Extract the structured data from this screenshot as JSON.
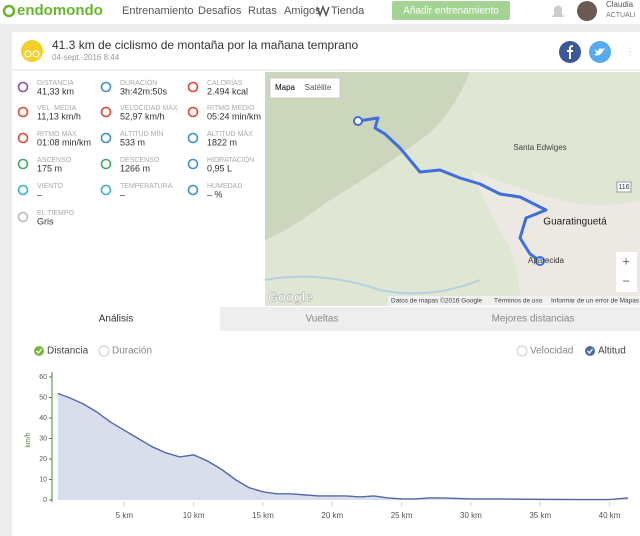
{
  "nav": {
    "logo": "endomondo",
    "items": [
      "Entrenamiento",
      "Desafíos",
      "Rutas",
      "Amigos",
      "Tienda"
    ],
    "button": "Añadir entrenamiento",
    "user": "Claudia",
    "user_status": "ACTUALI"
  },
  "workout": {
    "title": "41.3 km de ciclismo de montaña por la mañana temprano",
    "date": "04-sept.-2016 8:44"
  },
  "stats": [
    {
      "label": "DISTANCIA",
      "value": "41,33 km"
    },
    {
      "label": "DURACIÓN",
      "value": "3h:42m:50s"
    },
    {
      "label": "CALORÍAS",
      "value": "2.494 kcal"
    },
    {
      "label": "VEL. MEDIA",
      "value": "11,13 km/h"
    },
    {
      "label": "VELOCIDAD MÁX",
      "value": "52,97 km/h"
    },
    {
      "label": "RITMO MEDIO",
      "value": "05:24 min/km"
    },
    {
      "label": "RITMO MÁX",
      "value": "01:08 min/km"
    },
    {
      "label": "ALTITUD MÍN",
      "value": "533 m"
    },
    {
      "label": "ALTITUD MÁX",
      "value": "1822 m"
    },
    {
      "label": "ASCENSO",
      "value": "175 m"
    },
    {
      "label": "DESCENSO",
      "value": "1266 m"
    },
    {
      "label": "HIDRATACIÓN",
      "value": "0,95 L"
    },
    {
      "label": "VIENTO",
      "value": "–"
    },
    {
      "label": "TEMPERATURA",
      "value": "–"
    },
    {
      "label": "HUMEDAD",
      "value": "– %"
    },
    {
      "label": "EL TIEMPO",
      "value": "Gris"
    }
  ],
  "map": {
    "map_button": "Mapa",
    "satellite_button": "Satélite",
    "places": [
      "Santa Edwiges",
      "Guaratinguetá",
      "Aparecida"
    ],
    "road": "116",
    "logo": "Google",
    "data": "Datos de mapas ©2016 Google",
    "terms": "Términos de uso",
    "report": "Informar de un error de Mapas",
    "zoom_in": "+",
    "zoom_out": "−"
  },
  "tabs": [
    "Análisis",
    "Vueltas",
    "Mejores distancias"
  ],
  "chart_options": {
    "x_options": [
      "Distancia",
      "Duración"
    ],
    "y_option": "Velocidad"
  },
  "chart_data": {
    "type": "area",
    "ylabel": "km/h",
    "x": [
      0.2,
      1,
      2,
      3,
      4,
      5,
      6,
      7,
      8,
      9,
      10,
      11,
      12,
      13,
      14,
      15,
      16,
      17,
      18,
      19,
      20,
      21,
      22,
      23,
      24,
      25,
      26,
      27,
      28,
      30,
      32,
      35,
      38,
      40,
      41.33
    ],
    "series": [
      {
        "name": "Altitud",
        "color": "#5468a8",
        "values": [
          52,
          50,
          47,
          43,
          38,
          34,
          30,
          26,
          23,
          21,
          22,
          19,
          15,
          10,
          6,
          4,
          3,
          3,
          2.5,
          2,
          2,
          2,
          1.5,
          2,
          1,
          0.5,
          0.5,
          1,
          1,
          0.5,
          0.5,
          0.3,
          0.2,
          0.2,
          1
        ]
      }
    ],
    "xlim": [
      0,
      41.33
    ],
    "ylim": [
      0,
      60
    ],
    "xticks": [
      {
        "value": 5,
        "label": "5 km"
      },
      {
        "value": 10,
        "label": "10 km"
      },
      {
        "value": 15,
        "label": "15 km"
      },
      {
        "value": 20,
        "label": "20 km"
      },
      {
        "value": 25,
        "label": "25 km"
      },
      {
        "value": 30,
        "label": "30 km"
      },
      {
        "value": 35,
        "label": "35 km"
      },
      {
        "value": 40,
        "label": "40 km"
      }
    ],
    "yticks": [
      0,
      10,
      20,
      30,
      40,
      50,
      60
    ],
    "grid": false
  }
}
